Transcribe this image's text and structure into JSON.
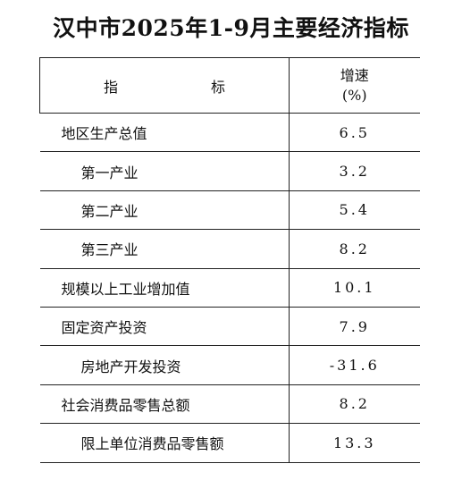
{
  "title": "汉中市2025年1-9月主要经济指标",
  "header": {
    "indicator_label": "指　　标",
    "rate_label_line1": "增速",
    "rate_label_line2": "(%)"
  },
  "rows": [
    {
      "name": "地区生产总值",
      "value": "6.5",
      "indent": 0
    },
    {
      "name": "第一产业",
      "value": "3.2",
      "indent": 1
    },
    {
      "name": "第二产业",
      "value": "5.4",
      "indent": 1
    },
    {
      "name": "第三产业",
      "value": "8.2",
      "indent": 1
    },
    {
      "name": "规模以上工业增加值",
      "value": "10.1",
      "indent": 0
    },
    {
      "name": "固定资产投资",
      "value": "7.9",
      "indent": 0
    },
    {
      "name": "房地产开发投资",
      "value": "-31.6",
      "indent": 1
    },
    {
      "name": "社会消费品零售总额",
      "value": "8.2",
      "indent": 0
    },
    {
      "name": "限上单位消费品零售额",
      "value": "13.3",
      "indent": 1
    }
  ]
}
